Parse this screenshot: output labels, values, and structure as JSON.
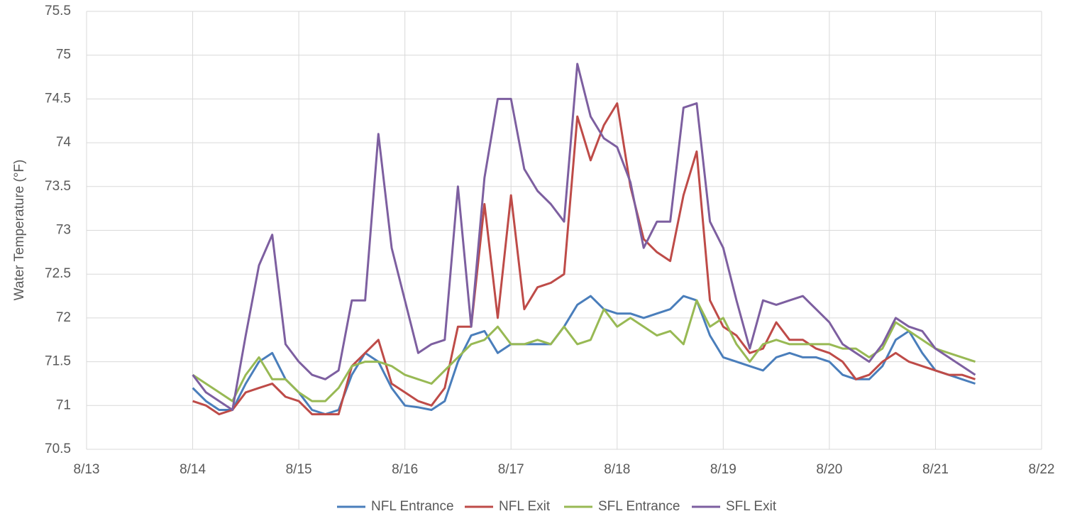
{
  "chart_data": {
    "type": "line",
    "y_label": "Water Temperature (°F)",
    "xlim": [
      13,
      22
    ],
    "xticks": [
      {
        "value": 13,
        "label": "8/13"
      },
      {
        "value": 14,
        "label": "8/14"
      },
      {
        "value": 15,
        "label": "8/15"
      },
      {
        "value": 16,
        "label": "8/16"
      },
      {
        "value": 17,
        "label": "8/17"
      },
      {
        "value": 18,
        "label": "8/18"
      },
      {
        "value": 19,
        "label": "8/19"
      },
      {
        "value": 20,
        "label": "8/20"
      },
      {
        "value": 21,
        "label": "8/21"
      },
      {
        "value": 22,
        "label": "8/22"
      }
    ],
    "ylim": [
      70.5,
      75.5
    ],
    "yticks": [
      70.5,
      71,
      71.5,
      72,
      72.5,
      73,
      73.5,
      74,
      74.5,
      75,
      75.5
    ],
    "grid": true,
    "legend": "bottom",
    "x": [
      14,
      14.125,
      14.25,
      14.375,
      14.5,
      14.625,
      14.75,
      14.875,
      15,
      15.125,
      15.25,
      15.375,
      15.5,
      15.625,
      15.75,
      15.875,
      16,
      16.125,
      16.25,
      16.375,
      16.5,
      16.625,
      16.75,
      16.875,
      17,
      17.125,
      17.25,
      17.375,
      17.5,
      17.625,
      17.75,
      17.875,
      18,
      18.125,
      18.25,
      18.375,
      18.5,
      18.625,
      18.75,
      18.875,
      19,
      19.125,
      19.25,
      19.375,
      19.5,
      19.625,
      19.75,
      19.875,
      20,
      20.125,
      20.25,
      20.375,
      20.5,
      20.625,
      20.75,
      20.875,
      21,
      21.125,
      21.25,
      21.375
    ],
    "series": [
      {
        "name": "NFL Entrance",
        "color": "#4a7ebb",
        "values": [
          71.2,
          71.05,
          70.95,
          70.95,
          71.25,
          71.5,
          71.6,
          71.3,
          71.15,
          70.95,
          70.9,
          70.95,
          71.35,
          71.6,
          71.5,
          71.2,
          71.0,
          70.98,
          70.95,
          71.05,
          71.5,
          71.8,
          71.85,
          71.6,
          71.7,
          71.7,
          71.7,
          71.7,
          71.9,
          72.15,
          72.25,
          72.1,
          72.05,
          72.05,
          72.0,
          72.05,
          72.1,
          72.25,
          72.2,
          71.8,
          71.55,
          71.5,
          71.45,
          71.4,
          71.55,
          71.6,
          71.55,
          71.55,
          71.5,
          71.35,
          71.3,
          71.3,
          71.45,
          71.75,
          71.85,
          71.6,
          71.4,
          71.35,
          71.3,
          71.25
        ]
      },
      {
        "name": "NFL Exit",
        "color": "#be4b48",
        "values": [
          71.05,
          71.0,
          70.9,
          70.95,
          71.15,
          71.2,
          71.25,
          71.1,
          71.05,
          70.9,
          70.9,
          70.9,
          71.45,
          71.6,
          71.75,
          71.25,
          71.15,
          71.05,
          71.0,
          71.2,
          71.9,
          71.9,
          73.3,
          72.0,
          73.4,
          72.1,
          72.35,
          72.4,
          72.5,
          74.3,
          73.8,
          74.2,
          74.45,
          73.5,
          72.9,
          72.75,
          72.65,
          73.4,
          73.9,
          72.2,
          71.9,
          71.8,
          71.6,
          71.65,
          71.95,
          71.75,
          71.75,
          71.65,
          71.6,
          71.5,
          71.3,
          71.35,
          71.5,
          71.6,
          71.5,
          71.45,
          71.4,
          71.35,
          71.35,
          71.3
        ]
      },
      {
        "name": "SFL Entrance",
        "color": "#98b954",
        "values": [
          71.35,
          71.25,
          71.15,
          71.05,
          71.35,
          71.55,
          71.3,
          71.3,
          71.15,
          71.05,
          71.05,
          71.2,
          71.45,
          71.5,
          71.5,
          71.45,
          71.35,
          71.3,
          71.25,
          71.4,
          71.55,
          71.7,
          71.75,
          71.9,
          71.7,
          71.7,
          71.75,
          71.7,
          71.9,
          71.7,
          71.75,
          72.1,
          71.9,
          72.0,
          71.9,
          71.8,
          71.85,
          71.7,
          72.2,
          71.9,
          72.0,
          71.7,
          71.5,
          71.7,
          71.75,
          71.7,
          71.7,
          71.7,
          71.7,
          71.65,
          71.65,
          71.55,
          71.65,
          71.95,
          71.85,
          71.75,
          71.65,
          71.6,
          71.55,
          71.5
        ]
      },
      {
        "name": "SFL Exit",
        "color": "#7d5fa0",
        "values": [
          71.35,
          71.15,
          71.05,
          70.95,
          71.8,
          72.6,
          72.95,
          71.7,
          71.5,
          71.35,
          71.3,
          71.4,
          72.2,
          72.2,
          74.1,
          72.8,
          72.2,
          71.6,
          71.7,
          71.75,
          73.5,
          71.9,
          73.6,
          74.5,
          74.5,
          73.7,
          73.45,
          73.3,
          73.1,
          74.9,
          74.3,
          74.05,
          73.95,
          73.55,
          72.8,
          73.1,
          73.1,
          74.4,
          74.45,
          73.1,
          72.8,
          72.2,
          71.65,
          72.2,
          72.15,
          72.2,
          72.25,
          72.1,
          71.95,
          71.7,
          71.6,
          71.5,
          71.7,
          72.0,
          71.9,
          71.85,
          71.65,
          71.55,
          71.45,
          71.35
        ]
      }
    ]
  }
}
